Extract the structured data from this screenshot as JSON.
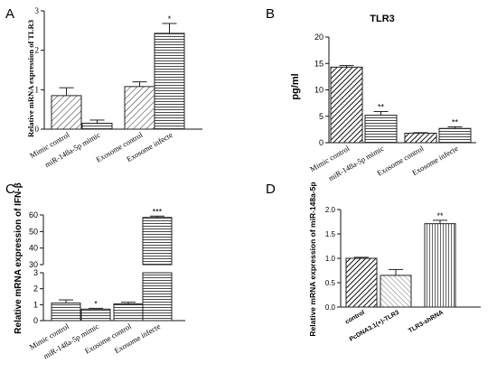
{
  "panels": [
    {
      "id": "A",
      "letter": "A",
      "title": "",
      "ylabel": "Relative mRNA expression of TLR3"
    },
    {
      "id": "B",
      "letter": "B",
      "title": "TLR3",
      "ylabel": "pg/ml"
    },
    {
      "id": "C",
      "letter": "C",
      "title": "",
      "ylabel": "Relative mRNA expression of IFN-β"
    },
    {
      "id": "D",
      "letter": "D",
      "title": "",
      "ylabel": "Relative mRNA expression of miR-148a-5p"
    }
  ],
  "colors": {
    "bar_stroke": "#222222",
    "axis": "#111111",
    "background": "#ffffff"
  },
  "chart_data": [
    {
      "id": "A",
      "type": "bar",
      "title": "",
      "ylabel": "Relative mRNA expression of TLR3",
      "xlabel": "",
      "ylim": [
        0,
        3
      ],
      "yticks": [
        "0",
        "1",
        "2",
        "3"
      ],
      "categories": [
        "Mimic control",
        "miR-148a-5p mimic",
        "Exosome control",
        "Exosome infecte"
      ],
      "values": [
        0.85,
        0.15,
        1.08,
        2.43
      ],
      "errors": [
        0.2,
        0.08,
        0.12,
        0.25
      ],
      "significance": [
        "",
        "",
        "",
        "*"
      ],
      "patterns": [
        "diag",
        "horiz",
        "diag",
        "horiz"
      ],
      "grid": false,
      "legend": "none"
    },
    {
      "id": "B",
      "type": "bar",
      "title": "TLR3",
      "ylabel": "pg/ml",
      "xlabel": "",
      "ylim": [
        0,
        20
      ],
      "yticks": [
        "0",
        "5",
        "10",
        "15",
        "20"
      ],
      "categories": [
        "Mimic control",
        "miR-148a-5p mimic",
        "Exosome control",
        "Exosome infecte"
      ],
      "values": [
        14.3,
        5.2,
        1.8,
        2.7
      ],
      "errors": [
        0.3,
        0.7,
        0.1,
        0.3
      ],
      "significance": [
        "",
        "**",
        "",
        "**"
      ],
      "patterns": [
        "diag-dense",
        "horiz",
        "diag-dense",
        "horiz"
      ],
      "grid": false,
      "legend": "none"
    },
    {
      "id": "C",
      "type": "bar",
      "title": "",
      "ylabel": "Relative mRNA expression of IFN-β",
      "xlabel": "",
      "axis_break": [
        3,
        30
      ],
      "ylim_lower": [
        0,
        3
      ],
      "ylim_upper": [
        30,
        60
      ],
      "yticks_lower": [
        "0",
        "1",
        "2",
        "3"
      ],
      "yticks_upper": [
        "30",
        "40",
        "50",
        "60"
      ],
      "categories": [
        "Mimic control",
        "miR-148a-5p mimic",
        "Exosome control",
        "Exosome infecte"
      ],
      "values": [
        1.1,
        0.72,
        1.05,
        58.5
      ],
      "errors": [
        0.2,
        0.05,
        0.1,
        0.8
      ],
      "significance": [
        "",
        "*",
        "",
        "***"
      ],
      "patterns": [
        "horiz",
        "horiz",
        "horiz",
        "horiz"
      ],
      "grid": false,
      "legend": "none"
    },
    {
      "id": "D",
      "type": "bar",
      "title": "",
      "ylabel": "Relative mRNA expression of miR-148a-5p",
      "xlabel": "",
      "ylim": [
        0,
        2.0
      ],
      "yticks": [
        "0.0",
        "0.5",
        "1.0",
        "1.5",
        "2.0"
      ],
      "categories": [
        "control",
        "PcDNA3.1(+)-TLR3",
        "TLR3-shRNA"
      ],
      "values": [
        1.0,
        0.65,
        1.71
      ],
      "errors": [
        0.02,
        0.12,
        0.07
      ],
      "significance": [
        "",
        "",
        "**"
      ],
      "patterns": [
        "diag-dense",
        "diag-light",
        "vert"
      ],
      "grid": false,
      "legend": "none"
    }
  ]
}
